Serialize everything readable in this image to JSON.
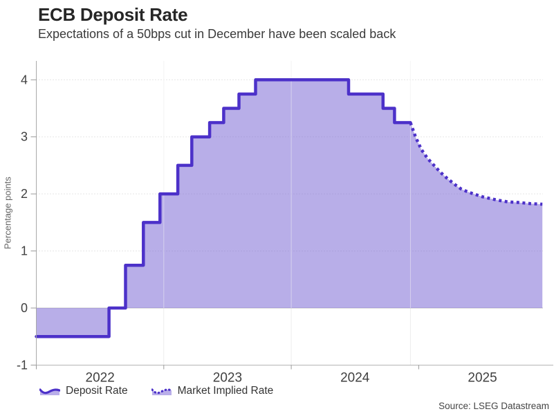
{
  "header": {
    "title": "ECB Deposit Rate",
    "subtitle": "Expectations of a 50bps cut in December have been scaled back"
  },
  "chart_data": {
    "type": "area",
    "title": "ECB Deposit Rate",
    "subtitle": "Expectations of a 50bps cut in December have been scaled back",
    "ylabel": "Percentage points",
    "xlabel": "",
    "xlim": [
      2022.0,
      2025.98
    ],
    "ylim": [
      -1,
      4.33
    ],
    "y_ticks": [
      -1,
      0,
      1,
      2,
      3,
      4
    ],
    "x_ticks": [
      {
        "year": 2022,
        "label": "2022"
      },
      {
        "year": 2023,
        "label": "2023"
      },
      {
        "year": 2024,
        "label": "2024"
      },
      {
        "year": 2025,
        "label": "2025"
      }
    ],
    "vertical_gridline_years": [
      2023,
      2024
    ],
    "forecast_divider_x": 2024.935,
    "baseline": 0,
    "grid": "horizontal dotted at 1-4, solid gray line at 0, faint vertical year lines",
    "legend_position": "bottom-left",
    "colors": {
      "line": "#4C31C9",
      "area_fill": "rgba(113,93,209,0.5)",
      "grid": "#cccccc",
      "zero_line": "#c6c6c6",
      "axis": "#a8a8a8",
      "tick_text": "#404040"
    },
    "legend": [
      {
        "label": "Deposit Rate",
        "style": "solid"
      },
      {
        "label": "Market Implied Rate",
        "style": "dotted"
      }
    ],
    "series": [
      {
        "name": "Deposit Rate",
        "type": "step",
        "points": [
          [
            2022.0,
            -0.5
          ],
          [
            2022.57,
            0.0
          ],
          [
            2022.7,
            0.75
          ],
          [
            2022.84,
            1.5
          ],
          [
            2022.97,
            2.0
          ],
          [
            2023.11,
            2.5
          ],
          [
            2023.22,
            3.0
          ],
          [
            2023.36,
            3.25
          ],
          [
            2023.47,
            3.5
          ],
          [
            2023.59,
            3.75
          ],
          [
            2023.72,
            4.0
          ],
          [
            2024.45,
            3.75
          ],
          [
            2024.72,
            3.5
          ],
          [
            2024.81,
            3.25
          ],
          [
            2024.935,
            3.25
          ]
        ]
      },
      {
        "name": "Market Implied Rate",
        "type": "dotted",
        "points": [
          [
            2024.935,
            3.25
          ],
          [
            2024.975,
            3.0
          ],
          [
            2025.02,
            2.78
          ],
          [
            2025.07,
            2.62
          ],
          [
            2025.12,
            2.5
          ],
          [
            2025.17,
            2.38
          ],
          [
            2025.22,
            2.28
          ],
          [
            2025.28,
            2.17
          ],
          [
            2025.33,
            2.09
          ],
          [
            2025.38,
            2.04
          ],
          [
            2025.43,
            2.0
          ],
          [
            2025.5,
            1.95
          ],
          [
            2025.56,
            1.92
          ],
          [
            2025.62,
            1.89
          ],
          [
            2025.7,
            1.86
          ],
          [
            2025.78,
            1.85
          ],
          [
            2025.88,
            1.83
          ],
          [
            2025.97,
            1.82
          ]
        ]
      }
    ]
  },
  "footer": {
    "source": "Source: LSEG Datastream"
  }
}
